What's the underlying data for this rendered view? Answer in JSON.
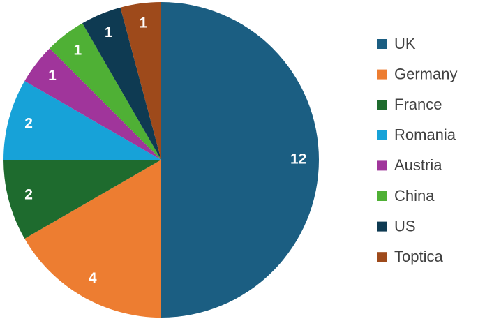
{
  "chart_data": {
    "type": "pie",
    "categories": [
      "UK",
      "Germany",
      "France",
      "Romania",
      "Austria",
      "China",
      "US",
      "Toptica"
    ],
    "values": [
      12,
      4,
      2,
      2,
      1,
      1,
      1,
      1
    ],
    "colors": [
      "#1b5e82",
      "#ed7d31",
      "#1e6b2e",
      "#17a2d8",
      "#a0359b",
      "#4fb035",
      "#0e3a52",
      "#9e4a1b"
    ],
    "legend": "right"
  }
}
